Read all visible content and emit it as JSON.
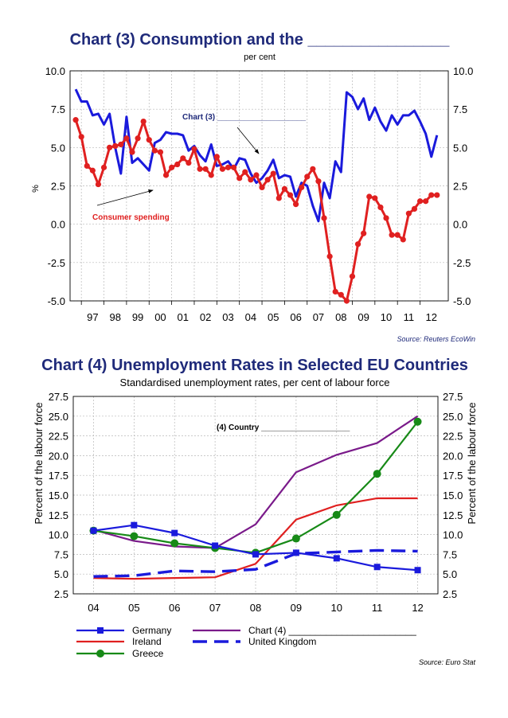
{
  "chart_data": [
    {
      "type": "line",
      "title": "Chart (3) Consumption and the ________________",
      "subtitle": "per cent",
      "ylabel": "%",
      "ylim": [
        -5.0,
        10.0
      ],
      "y_ticks": [
        "10.0",
        "7.5",
        "5.0",
        "2.5",
        "0.0",
        "-2.5",
        "-5.0"
      ],
      "x_tick_labels": [
        "97",
        "98",
        "99",
        "00",
        "01",
        "02",
        "03",
        "04",
        "05",
        "06",
        "07",
        "08",
        "09",
        "10",
        "11",
        "12"
      ],
      "x_start_year": 1996.75,
      "x_step_years": 0.25,
      "grid": true,
      "source": "Source: Reuters EcoWin",
      "annotations": [
        {
          "text": "Chart (3) ____________________",
          "color": "#1f2a7a"
        },
        {
          "text": "Consumer spending",
          "color": "#e02020"
        }
      ],
      "series": [
        {
          "name": "Chart (3)",
          "color": "#1a1adc",
          "markers": false,
          "values": [
            8.8,
            8.0,
            8.0,
            7.1,
            7.2,
            6.5,
            7.2,
            5.0,
            3.3,
            7.0,
            4.0,
            4.3,
            3.9,
            3.5,
            5.3,
            5.5,
            6.0,
            5.9,
            5.9,
            5.8,
            4.8,
            5.1,
            4.5,
            4.1,
            5.2,
            3.8,
            3.9,
            4.1,
            3.6,
            4.3,
            4.2,
            3.3,
            2.7,
            3.0,
            3.5,
            4.2,
            3.0,
            3.2,
            3.1,
            1.8,
            2.7,
            2.5,
            1.2,
            0.2,
            2.7,
            1.7,
            4.1,
            3.4,
            8.6,
            8.3,
            7.5,
            8.2,
            6.8,
            7.6,
            6.7,
            6.1,
            7.1,
            6.5,
            7.1,
            7.1,
            7.4,
            6.7,
            5.9,
            4.4,
            5.8
          ]
        },
        {
          "name": "Consumer spending",
          "color": "#e02020",
          "markers": true,
          "values": [
            6.8,
            5.7,
            3.8,
            3.5,
            2.6,
            3.7,
            5.0,
            5.1,
            5.2,
            5.6,
            4.7,
            5.6,
            6.7,
            5.5,
            4.8,
            4.7,
            3.2,
            3.7,
            3.9,
            4.3,
            4.0,
            4.9,
            3.6,
            3.6,
            3.2,
            4.4,
            3.6,
            3.7,
            3.7,
            3.0,
            3.4,
            2.9,
            3.2,
            2.4,
            2.9,
            3.3,
            1.7,
            2.3,
            1.9,
            1.3,
            2.4,
            3.1,
            3.6,
            2.8,
            0.4,
            -2.1,
            -4.4,
            -4.6,
            -5.0,
            -3.4,
            -1.3,
            -0.6,
            1.8,
            1.7,
            1.1,
            0.4,
            -0.7,
            -0.7,
            -1.0,
            0.7,
            1.0,
            1.5,
            1.5,
            1.9,
            1.9
          ]
        }
      ]
    },
    {
      "type": "line",
      "title": "Chart (4) Unemployment Rates in Selected EU Countries",
      "subtitle": "Standardised unemployment rates, per cent of labour force",
      "ylabel": "Percent of the labour force",
      "ylim": [
        2.5,
        27.5
      ],
      "y_ticks": [
        "27.5",
        "25.0",
        "22.5",
        "20.0",
        "17.5",
        "15.0",
        "12.5",
        "10.0",
        "7.5",
        "5.0",
        "2.5"
      ],
      "categories": [
        "04",
        "05",
        "06",
        "07",
        "08",
        "09",
        "10",
        "11",
        "12"
      ],
      "grid": true,
      "source": "Source: Euro Stat",
      "annotations": [
        {
          "text": "(4) Country ____________________",
          "color": "#000000"
        }
      ],
      "series": [
        {
          "name": "Germany",
          "color": "#1a1adc",
          "marker": "square",
          "dash": false,
          "values": [
            10.5,
            11.2,
            10.2,
            8.6,
            7.5,
            7.7,
            7.0,
            5.9,
            5.5
          ]
        },
        {
          "name": "Ireland",
          "color": "#e02020",
          "marker": "none",
          "dash": false,
          "values": [
            4.5,
            4.4,
            4.5,
            4.6,
            6.3,
            11.9,
            13.7,
            14.6,
            14.6
          ]
        },
        {
          "name": "Greece",
          "color": "#178a17",
          "marker": "circle",
          "dash": false,
          "values": [
            10.5,
            9.8,
            8.9,
            8.3,
            7.7,
            9.5,
            12.5,
            17.7,
            24.3
          ]
        },
        {
          "name": "Chart (4) ________________________",
          "color": "#7a1a8a",
          "marker": "none",
          "dash": false,
          "values": [
            10.6,
            9.2,
            8.5,
            8.3,
            11.3,
            17.9,
            20.1,
            21.6,
            25.0
          ]
        },
        {
          "name": "United Kingdom",
          "color": "#1a1adc",
          "marker": "none",
          "dash": true,
          "values": [
            4.7,
            4.8,
            5.4,
            5.3,
            5.6,
            7.6,
            7.8,
            8.0,
            7.9
          ]
        }
      ]
    }
  ]
}
